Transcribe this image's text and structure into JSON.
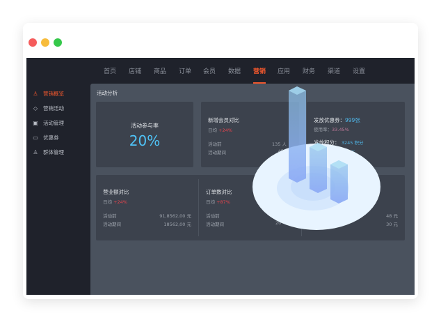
{
  "nav": {
    "items": [
      "首页",
      "店铺",
      "商品",
      "订单",
      "会员",
      "数据",
      "营销",
      "应用",
      "财务",
      "渠道",
      "设置"
    ],
    "active": "营销"
  },
  "sidebar": {
    "items": [
      {
        "label": "营销概览",
        "icon": "user-icon",
        "active": true
      },
      {
        "label": "营销活动",
        "icon": "tag-icon"
      },
      {
        "label": "活动管理",
        "icon": "calendar-icon"
      },
      {
        "label": "优惠券",
        "icon": "ticket-icon"
      },
      {
        "label": "群体管理",
        "icon": "group-icon"
      }
    ]
  },
  "panel": {
    "title": "活动分析"
  },
  "participation": {
    "label": "活动参与率",
    "value": "20%"
  },
  "members": {
    "title": "新增会员对比",
    "avg_label": "日均",
    "avg": "+24%",
    "before_label": "活动前",
    "before": "135 人",
    "during_label": "活动期间",
    "during": "453"
  },
  "coupons": {
    "issued_label": "发放优惠券：",
    "issued": "999张",
    "rate_label": "使用率：",
    "rate": "33.45%",
    "points_label": "发放积分：",
    "points": "3245 积分",
    "extra": "34 元"
  },
  "revenue": {
    "title": "营业额对比",
    "avg_label": "日均",
    "avg": "+24%",
    "before_label": "活动前",
    "before": "91,8562,00 元",
    "during_label": "活动期间",
    "during": "18562,00 元"
  },
  "orders": {
    "title": "订单数对比",
    "avg_label": "日均",
    "avg": "+87%",
    "before_label": "活动前",
    "during_label": "活动期间",
    "during": "20"
  },
  "third": {
    "before": "48 元",
    "during": "30 元"
  },
  "colors": {
    "accent": "#f0572d",
    "positive": "#e8444d",
    "highlight": "#4fb6e8",
    "participation": "#4fc3f7"
  }
}
